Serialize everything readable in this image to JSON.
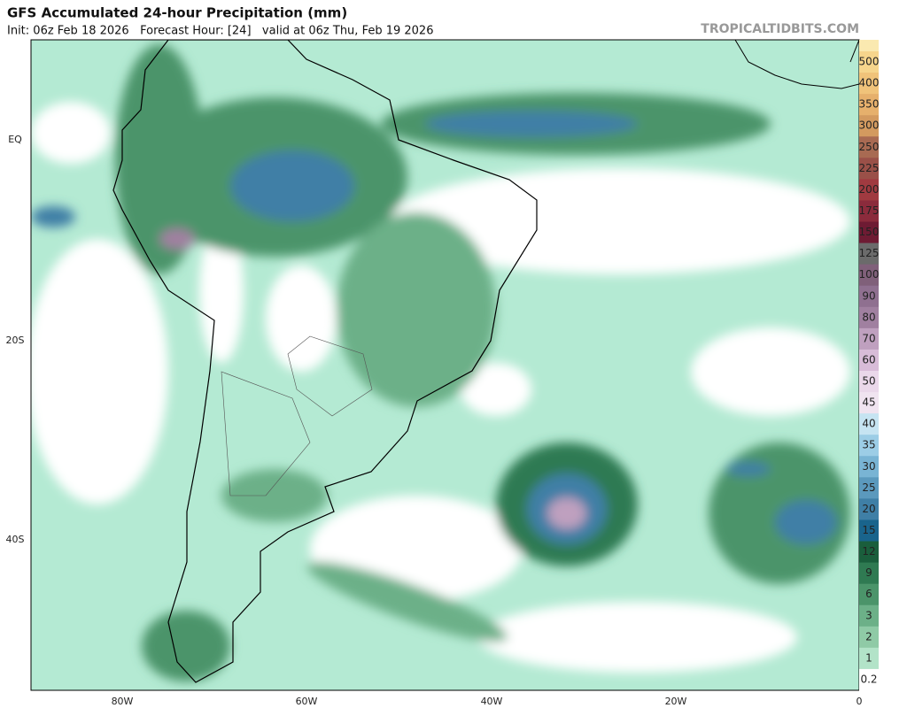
{
  "header": {
    "title": "GFS Accumulated 24-hour Precipitation (mm)",
    "subtitle": "Init: 06z Feb 18 2026   Forecast Hour: [24]   valid at 06z Thu, Feb 19 2026",
    "brand": "TROPICALTIDBITS.COM"
  },
  "map": {
    "lon_labels": [
      "80W",
      "60W",
      "40W",
      "20W",
      "0"
    ],
    "lat_labels": [
      "EQ",
      "20S",
      "40S"
    ]
  },
  "legend": [
    {
      "label": "500",
      "color": "#f6d58c"
    },
    {
      "label": "400",
      "color": "#f0c37a"
    },
    {
      "label": "350",
      "color": "#e6b06c"
    },
    {
      "label": "300",
      "color": "#d39a5f"
    },
    {
      "label": "250",
      "color": "#a86a52"
    },
    {
      "label": "225",
      "color": "#9a5048"
    },
    {
      "label": "200",
      "color": "#a03a40"
    },
    {
      "label": "175",
      "color": "#8b2b3c"
    },
    {
      "label": "150",
      "color": "#6e1b33"
    },
    {
      "label": "125",
      "color": "#6b6b6b"
    },
    {
      "label": "100",
      "color": "#80607a"
    },
    {
      "label": "90",
      "color": "#8f7090"
    },
    {
      "label": "80",
      "color": "#a080a0"
    },
    {
      "label": "70",
      "color": "#bfa0bf"
    },
    {
      "label": "60",
      "color": "#d8bcd8"
    },
    {
      "label": "50",
      "color": "#ead8ea"
    },
    {
      "label": "45",
      "color": "#f0e4f0"
    },
    {
      "label": "40",
      "color": "#c6e4f2"
    },
    {
      "label": "35",
      "color": "#9ccde6"
    },
    {
      "label": "30",
      "color": "#79b4d4"
    },
    {
      "label": "25",
      "color": "#5b99bd"
    },
    {
      "label": "20",
      "color": "#3f7fa6"
    },
    {
      "label": "15",
      "color": "#19648c"
    },
    {
      "label": "12",
      "color": "#1a5e3c"
    },
    {
      "label": "9",
      "color": "#2f7a52"
    },
    {
      "label": "6",
      "color": "#4b946a"
    },
    {
      "label": "3",
      "color": "#6cb088"
    },
    {
      "label": "2",
      "color": "#8fcaa6"
    },
    {
      "label": "1",
      "color": "#b2e3c8"
    },
    {
      "label": "0.2",
      "color": "#ffffff"
    }
  ]
}
